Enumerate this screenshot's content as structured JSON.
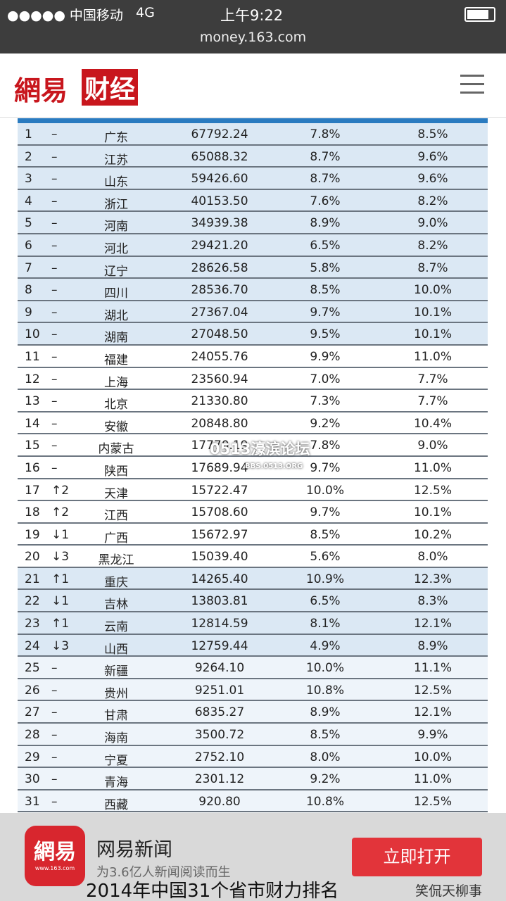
{
  "status_bar": {
    "carrier": "●●●●● 中国移动",
    "network": "4G",
    "time": "上午9:22"
  },
  "url": "money.163.com",
  "header": {
    "logo_a": "網易",
    "logo_b": "财经"
  },
  "table": {
    "rows": [
      [
        "1",
        "–",
        "广东",
        "67792.24",
        "7.8%",
        "8.5%"
      ],
      [
        "2",
        "–",
        "江苏",
        "65088.32",
        "8.7%",
        "9.6%"
      ],
      [
        "3",
        "–",
        "山东",
        "59426.60",
        "8.7%",
        "9.6%"
      ],
      [
        "4",
        "–",
        "浙江",
        "40153.50",
        "7.6%",
        "8.2%"
      ],
      [
        "5",
        "–",
        "河南",
        "34939.38",
        "8.9%",
        "9.0%"
      ],
      [
        "6",
        "–",
        "河北",
        "29421.20",
        "6.5%",
        "8.2%"
      ],
      [
        "7",
        "–",
        "辽宁",
        "28626.58",
        "5.8%",
        "8.7%"
      ],
      [
        "8",
        "–",
        "四川",
        "28536.70",
        "8.5%",
        "10.0%"
      ],
      [
        "9",
        "–",
        "湖北",
        "27367.04",
        "9.7%",
        "10.1%"
      ],
      [
        "10",
        "–",
        "湖南",
        "27048.50",
        "9.5%",
        "10.1%"
      ],
      [
        "11",
        "–",
        "福建",
        "24055.76",
        "9.9%",
        "11.0%"
      ],
      [
        "12",
        "–",
        "上海",
        "23560.94",
        "7.0%",
        "7.7%"
      ],
      [
        "13",
        "–",
        "北京",
        "21330.80",
        "7.3%",
        "7.7%"
      ],
      [
        "14",
        "–",
        "安徽",
        "20848.80",
        "9.2%",
        "10.4%"
      ],
      [
        "15",
        "–",
        "内蒙古",
        "17770.19",
        "7.8%",
        "9.0%"
      ],
      [
        "16",
        "–",
        "陕西",
        "17689.94",
        "9.7%",
        "11.0%"
      ],
      [
        "17",
        "↑2",
        "天津",
        "15722.47",
        "10.0%",
        "12.5%"
      ],
      [
        "18",
        "↑2",
        "江西",
        "15708.60",
        "9.7%",
        "10.1%"
      ],
      [
        "19",
        "↓1",
        "广西",
        "15672.97",
        "8.5%",
        "10.2%"
      ],
      [
        "20",
        "↓3",
        "黑龙江",
        "15039.40",
        "5.6%",
        "8.0%"
      ],
      [
        "21",
        "↑1",
        "重庆",
        "14265.40",
        "10.9%",
        "12.3%"
      ],
      [
        "22",
        "↓1",
        "吉林",
        "13803.81",
        "6.5%",
        "8.3%"
      ],
      [
        "23",
        "↑1",
        "云南",
        "12814.59",
        "8.1%",
        "12.1%"
      ],
      [
        "24",
        "↓3",
        "山西",
        "12759.44",
        "4.9%",
        "8.9%"
      ],
      [
        "25",
        "–",
        "新疆",
        "9264.10",
        "10.0%",
        "11.1%"
      ],
      [
        "26",
        "–",
        "贵州",
        "9251.01",
        "10.8%",
        "12.5%"
      ],
      [
        "27",
        "–",
        "甘肃",
        "6835.27",
        "8.9%",
        "12.1%"
      ],
      [
        "28",
        "–",
        "海南",
        "3500.72",
        "8.5%",
        "9.9%"
      ],
      [
        "29",
        "–",
        "宁夏",
        "2752.10",
        "8.0%",
        "10.0%"
      ],
      [
        "30",
        "–",
        "青海",
        "2301.12",
        "9.2%",
        "11.0%"
      ],
      [
        "31",
        "–",
        "西藏",
        "920.80",
        "10.8%",
        "12.5%"
      ]
    ]
  },
  "watermark": {
    "main": "0513濠滨论坛",
    "sub": "BBS.0513.ORG"
  },
  "banner": {
    "icon": "網易",
    "icon_url": "www.163.com",
    "app_name": "网易新闻",
    "slogan": "为3.6亿人新闻阅读而生",
    "button": "立即打开"
  },
  "caption": "2014年中国31个省市财力排名",
  "wechat": "笑侃天柳事"
}
